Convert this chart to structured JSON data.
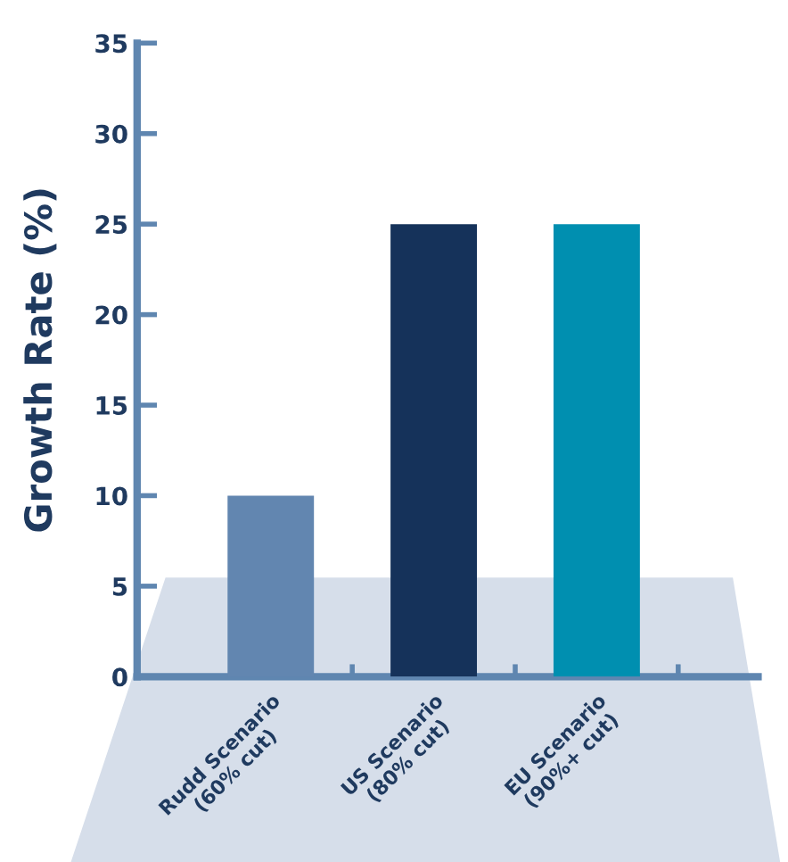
{
  "chart_data": {
    "type": "bar",
    "ylabel": "Growth Rate (%)",
    "categories": [
      "Rudd Scenario\n(60% cut)",
      "US Scenario\n(80% cut)",
      "EU Scenario\n(90%+ cut)"
    ],
    "values": [
      10,
      25,
      25
    ],
    "colors": [
      "#6286b0",
      "#15325a",
      "#008fb0"
    ],
    "ylim": [
      0,
      35
    ],
    "yticks": [
      0,
      5,
      10,
      15,
      20,
      25,
      30,
      35
    ],
    "grid": false
  }
}
